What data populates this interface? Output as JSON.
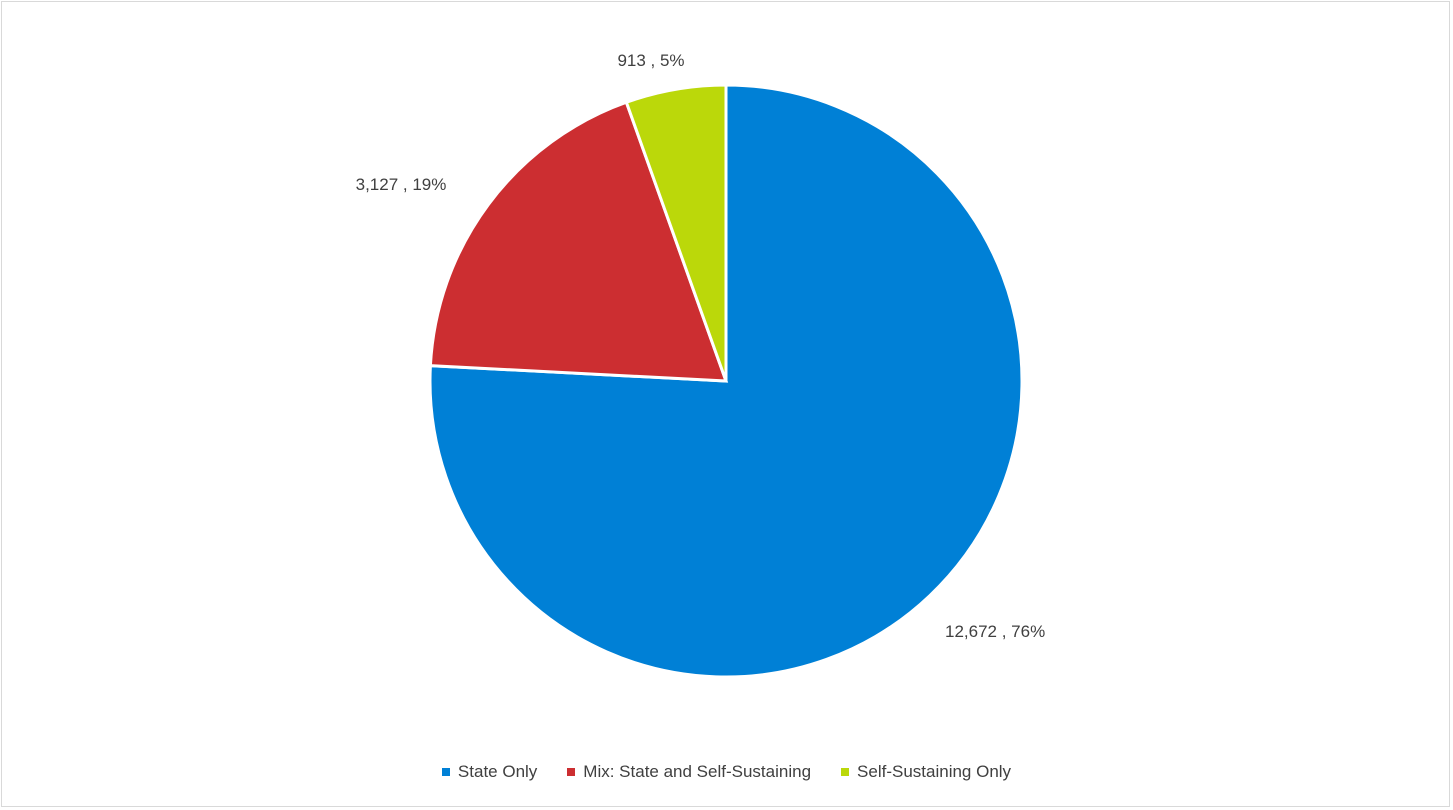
{
  "chart_data": {
    "type": "pie",
    "start_angle": "top",
    "direction": "clockwise",
    "legend_position": "bottom",
    "slices": [
      {
        "name": "State Only",
        "value": 12672,
        "percent": 76,
        "label": "12,672 , 76%",
        "color": "#0080D6"
      },
      {
        "name": "Mix: State and Self-Sustaining",
        "value": 3127,
        "percent": 19,
        "label": "3,127 , 19%",
        "color": "#CC2E31"
      },
      {
        "name": "Self-Sustaining Only",
        "value": 913,
        "percent": 5,
        "label": "913 , 5%",
        "color": "#BBD80A"
      }
    ]
  }
}
